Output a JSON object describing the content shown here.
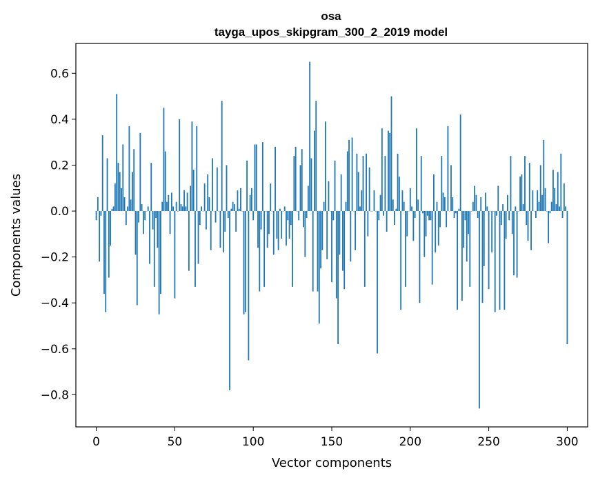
{
  "chart_data": {
    "type": "bar",
    "title": "osa",
    "subtitle": "tayga_upos_skipgram_300_2_2019 model",
    "xlabel": "Vector components",
    "ylabel": "Components values",
    "xlim": [
      -13,
      313
    ],
    "ylim": [
      -0.94,
      0.73
    ],
    "xticks": [
      0,
      50,
      100,
      150,
      200,
      250,
      300
    ],
    "xtick_labels": [
      "0",
      "50",
      "100",
      "150",
      "200",
      "250",
      "300"
    ],
    "yticks": [
      0.6,
      0.4,
      0.2,
      0.0,
      -0.2,
      -0.4,
      -0.6,
      -0.8
    ],
    "ytick_labels": [
      "0.6",
      "0.4",
      "0.2",
      "0.0",
      "−0.2",
      "−0.4",
      "−0.6",
      "−0.8"
    ],
    "bar_color": "#1f77b4",
    "values": [
      -0.04,
      0.06,
      -0.22,
      -0.02,
      0.33,
      -0.36,
      -0.44,
      0.23,
      -0.29,
      -0.15,
      0.01,
      0.02,
      0.12,
      0.51,
      0.21,
      0.17,
      0.1,
      0.29,
      0.06,
      -0.06,
      0.02,
      0.37,
      0.05,
      0.17,
      0.27,
      -0.19,
      -0.41,
      -0.05,
      0.34,
      0.03,
      -0.1,
      -0.04,
      0.0,
      0.02,
      -0.23,
      0.21,
      -0.08,
      -0.33,
      -0.03,
      -0.16,
      -0.45,
      -0.36,
      0.04,
      0.45,
      0.26,
      0.04,
      0.07,
      -0.1,
      0.08,
      0.02,
      -0.38,
      0.04,
      0.0,
      0.4,
      0.03,
      0.02,
      0.09,
      0.02,
      0.08,
      -0.26,
      0.11,
      0.39,
      0.18,
      -0.33,
      0.37,
      -0.23,
      -0.06,
      0.02,
      0.0,
      0.12,
      -0.08,
      0.16,
      0.06,
      -0.17,
      0.23,
      0.0,
      -0.05,
      0.19,
      0.0,
      -0.16,
      0.48,
      -0.18,
      -0.09,
      0.2,
      -0.03,
      -0.78,
      0.01,
      0.04,
      0.03,
      -0.09,
      0.09,
      0.01,
      0.1,
      0.0,
      -0.45,
      -0.44,
      0.22,
      -0.65,
      0.07,
      0.1,
      -0.04,
      0.29,
      0.29,
      -0.16,
      -0.35,
      -0.08,
      0.3,
      -0.33,
      0.0,
      -0.16,
      -0.1,
      0.12,
      0.0,
      -0.19,
      0.28,
      -0.12,
      -0.17,
      0.01,
      -0.12,
      0.0,
      0.02,
      -0.15,
      -0.04,
      -0.12,
      -0.06,
      -0.33,
      0.24,
      0.28,
      0.0,
      -0.04,
      0.2,
      0.27,
      -0.07,
      -0.2,
      -0.03,
      0.11,
      0.65,
      0.23,
      -0.35,
      0.35,
      0.48,
      -0.35,
      -0.49,
      -0.25,
      -0.17,
      0.04,
      0.39,
      -0.21,
      0.13,
      0.0,
      -0.31,
      -0.04,
      0.22,
      -0.38,
      -0.58,
      -0.19,
      0.16,
      -0.26,
      -0.34,
      0.04,
      0.26,
      0.31,
      -0.22,
      0.32,
      0.0,
      -0.17,
      0.25,
      0.17,
      0.02,
      0.09,
      0.24,
      -0.33,
      0.25,
      -0.11,
      0.19,
      0.0,
      0.0,
      0.09,
      0.0,
      -0.62,
      -0.04,
      0.07,
      0.36,
      -0.02,
      0.24,
      -0.09,
      0.35,
      0.34,
      0.5,
      0.05,
      -0.06,
      0.01,
      0.25,
      0.15,
      -0.43,
      0.09,
      0.04,
      -0.33,
      -0.11,
      0.0,
      0.1,
      0.02,
      -0.13,
      -0.03,
      0.36,
      0.05,
      -0.4,
      0.24,
      -0.01,
      -0.2,
      -0.11,
      -0.02,
      -0.04,
      -0.04,
      -0.32,
      0.16,
      -0.18,
      0.04,
      -0.15,
      -0.07,
      0.24,
      0.08,
      0.06,
      -0.07,
      0.37,
      0.0,
      0.2,
      0.06,
      -0.03,
      -0.01,
      -0.43,
      0.01,
      0.42,
      -0.39,
      -0.16,
      -0.04,
      -0.22,
      -0.1,
      -0.33,
      0.0,
      0.04,
      0.11,
      0.07,
      -0.03,
      -0.86,
      0.06,
      -0.4,
      -0.24,
      0.08,
      0.02,
      -0.34,
      0.0,
      -0.18,
      0.0,
      -0.44,
      -0.02,
      0.11,
      -0.43,
      -0.06,
      0.03,
      -0.43,
      -0.12,
      0.07,
      -0.04,
      0.24,
      -0.1,
      -0.28,
      0.02,
      -0.29,
      0.0,
      0.15,
      0.16,
      0.03,
      0.24,
      -0.06,
      -0.13,
      0.21,
      -0.17,
      0.09,
      0.0,
      -0.03,
      0.09,
      0.04,
      0.2,
      0.07,
      0.31,
      0.1,
      0.0,
      -0.14,
      -0.01,
      0.04,
      0.18,
      0.1,
      0.03,
      0.17,
      0.02,
      0.25,
      -0.03,
      0.12,
      0.02,
      -0.58
    ]
  }
}
